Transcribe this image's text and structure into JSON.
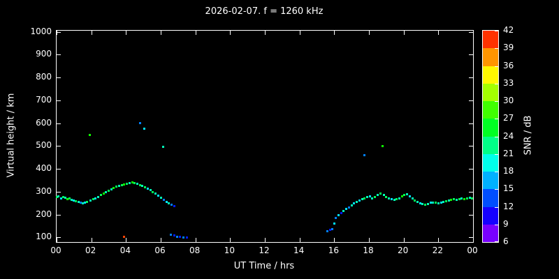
{
  "colors": {
    "background": "#000000",
    "foreground": "#ffffff"
  },
  "chart_data": {
    "type": "scatter",
    "title": "2026-02-07. f = 1260 kHz",
    "xlabel": "UT Time / hrs",
    "ylabel": "Virtual height / km",
    "cblabel": "SNR / dB",
    "xlim": [
      0,
      24
    ],
    "ylim": [
      80,
      1005
    ],
    "clim": [
      6,
      42
    ],
    "grid": false,
    "legend_position": "none",
    "xtick_step_hrs": 2,
    "xtick_labels": [
      "00",
      "02",
      "04",
      "06",
      "08",
      "10",
      "12",
      "14",
      "16",
      "18",
      "20",
      "22",
      "00"
    ],
    "yticks": [
      100,
      200,
      300,
      400,
      500,
      600,
      700,
      800,
      900,
      1000
    ],
    "cbticks": [
      6,
      9,
      12,
      15,
      18,
      21,
      24,
      27,
      30,
      33,
      36,
      39,
      42
    ],
    "points_format": "[ut_time_hrs, virtual_height_km, snr_db]",
    "points": [
      [
        0.0,
        276,
        24
      ],
      [
        0.12,
        280,
        21
      ],
      [
        0.25,
        272,
        18
      ],
      [
        0.37,
        277,
        24
      ],
      [
        0.5,
        274,
        21
      ],
      [
        0.62,
        268,
        27
      ],
      [
        0.75,
        271,
        24
      ],
      [
        0.87,
        266,
        21
      ],
      [
        1.0,
        262,
        18
      ],
      [
        1.12,
        258,
        24
      ],
      [
        1.25,
        255,
        21
      ],
      [
        1.37,
        252,
        15
      ],
      [
        1.5,
        250,
        21
      ],
      [
        1.62,
        252,
        18
      ],
      [
        1.75,
        256,
        24
      ],
      [
        1.9,
        550,
        27
      ],
      [
        1.95,
        262,
        21
      ],
      [
        2.1,
        267,
        24
      ],
      [
        2.25,
        272,
        18
      ],
      [
        2.4,
        278,
        21
      ],
      [
        2.55,
        285,
        24
      ],
      [
        2.7,
        292,
        27
      ],
      [
        2.85,
        298,
        21
      ],
      [
        3.0,
        305,
        24
      ],
      [
        3.15,
        311,
        21
      ],
      [
        3.3,
        317,
        27
      ],
      [
        3.45,
        322,
        24
      ],
      [
        3.6,
        326,
        21
      ],
      [
        3.75,
        330,
        24
      ],
      [
        3.88,
        104,
        40
      ],
      [
        3.9,
        332,
        27
      ],
      [
        4.05,
        336,
        24
      ],
      [
        4.2,
        338,
        21
      ],
      [
        4.35,
        340,
        27
      ],
      [
        4.5,
        338,
        24
      ],
      [
        4.65,
        334,
        21
      ],
      [
        4.8,
        600,
        15
      ],
      [
        4.82,
        330,
        24
      ],
      [
        4.95,
        326,
        21
      ],
      [
        5.07,
        576,
        18
      ],
      [
        5.1,
        320,
        24
      ],
      [
        5.25,
        313,
        18
      ],
      [
        5.4,
        306,
        21
      ],
      [
        5.55,
        298,
        24
      ],
      [
        5.7,
        291,
        21
      ],
      [
        5.85,
        283,
        18
      ],
      [
        6.0,
        275,
        21
      ],
      [
        6.15,
        498,
        21
      ],
      [
        6.18,
        266,
        15
      ],
      [
        6.33,
        257,
        18
      ],
      [
        6.48,
        249,
        21
      ],
      [
        6.63,
        243,
        15
      ],
      [
        6.78,
        238,
        12
      ],
      [
        6.6,
        112,
        15
      ],
      [
        6.78,
        108,
        12
      ],
      [
        6.95,
        104,
        15
      ],
      [
        7.1,
        102,
        12
      ],
      [
        7.3,
        100,
        15
      ],
      [
        7.5,
        100,
        12
      ],
      [
        15.6,
        128,
        15
      ],
      [
        15.75,
        132,
        12
      ],
      [
        15.9,
        137,
        15
      ],
      [
        16.0,
        160,
        18
      ],
      [
        16.1,
        184,
        15
      ],
      [
        16.25,
        197,
        18
      ],
      [
        16.4,
        208,
        12
      ],
      [
        16.55,
        217,
        21
      ],
      [
        16.7,
        225,
        18
      ],
      [
        16.85,
        232,
        15
      ],
      [
        17.0,
        240,
        21
      ],
      [
        17.15,
        249,
        18
      ],
      [
        17.3,
        257,
        21
      ],
      [
        17.45,
        263,
        18
      ],
      [
        17.6,
        268,
        21
      ],
      [
        17.73,
        460,
        15
      ],
      [
        17.75,
        272,
        24
      ],
      [
        17.9,
        277,
        21
      ],
      [
        18.05,
        281,
        18
      ],
      [
        18.2,
        271,
        21
      ],
      [
        18.35,
        277,
        24
      ],
      [
        18.5,
        287,
        21
      ],
      [
        18.65,
        291,
        24
      ],
      [
        18.8,
        501,
        27
      ],
      [
        18.85,
        285,
        21
      ],
      [
        19.0,
        278,
        24
      ],
      [
        19.15,
        272,
        21
      ],
      [
        19.3,
        268,
        18
      ],
      [
        19.45,
        264,
        21
      ],
      [
        19.6,
        267,
        24
      ],
      [
        19.75,
        271,
        21
      ],
      [
        19.9,
        280,
        27
      ],
      [
        20.05,
        287,
        24
      ],
      [
        20.2,
        290,
        21
      ],
      [
        20.35,
        281,
        18
      ],
      [
        20.5,
        272,
        21
      ],
      [
        20.65,
        262,
        24
      ],
      [
        20.8,
        255,
        21
      ],
      [
        20.95,
        250,
        18
      ],
      [
        21.1,
        246,
        21
      ],
      [
        21.25,
        244,
        24
      ],
      [
        21.4,
        247,
        21
      ],
      [
        21.55,
        251,
        18
      ],
      [
        21.7,
        254,
        21
      ],
      [
        21.85,
        252,
        24
      ],
      [
        22.0,
        248,
        21
      ],
      [
        22.15,
        251,
        18
      ],
      [
        22.3,
        255,
        21
      ],
      [
        22.45,
        259,
        24
      ],
      [
        22.6,
        262,
        21
      ],
      [
        22.75,
        265,
        27
      ],
      [
        22.9,
        269,
        24
      ],
      [
        23.05,
        265,
        21
      ],
      [
        23.2,
        267,
        24
      ],
      [
        23.35,
        271,
        21
      ],
      [
        23.5,
        267,
        27
      ],
      [
        23.65,
        271,
        24
      ],
      [
        23.8,
        275,
        21
      ],
      [
        23.95,
        271,
        24
      ]
    ]
  }
}
